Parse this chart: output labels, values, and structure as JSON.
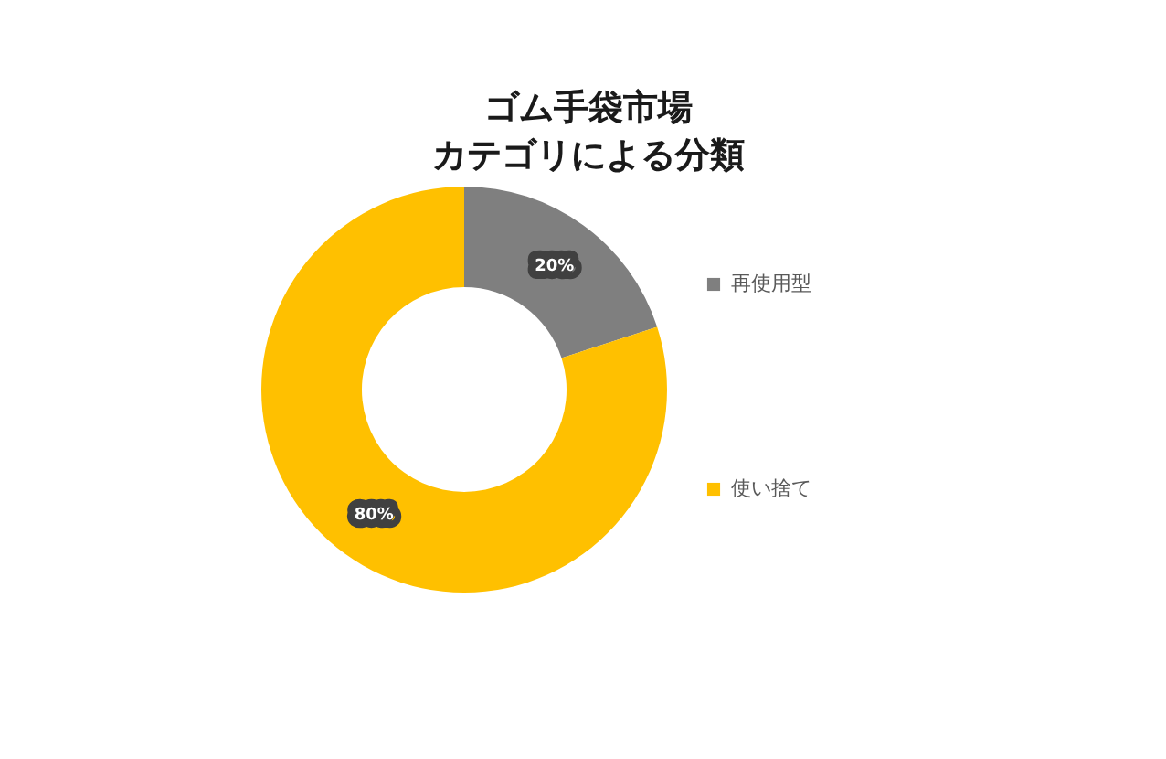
{
  "chart_data": {
    "type": "donut",
    "title": "ゴム手袋市場",
    "subtitle": "カテゴリによる分類",
    "categories": [
      "再使用型",
      "使い捨て"
    ],
    "values": [
      20,
      80
    ],
    "colors": [
      "#7f7f7f",
      "#ffc000"
    ],
    "value_labels": [
      "20%",
      "80%"
    ],
    "legend": "right"
  }
}
